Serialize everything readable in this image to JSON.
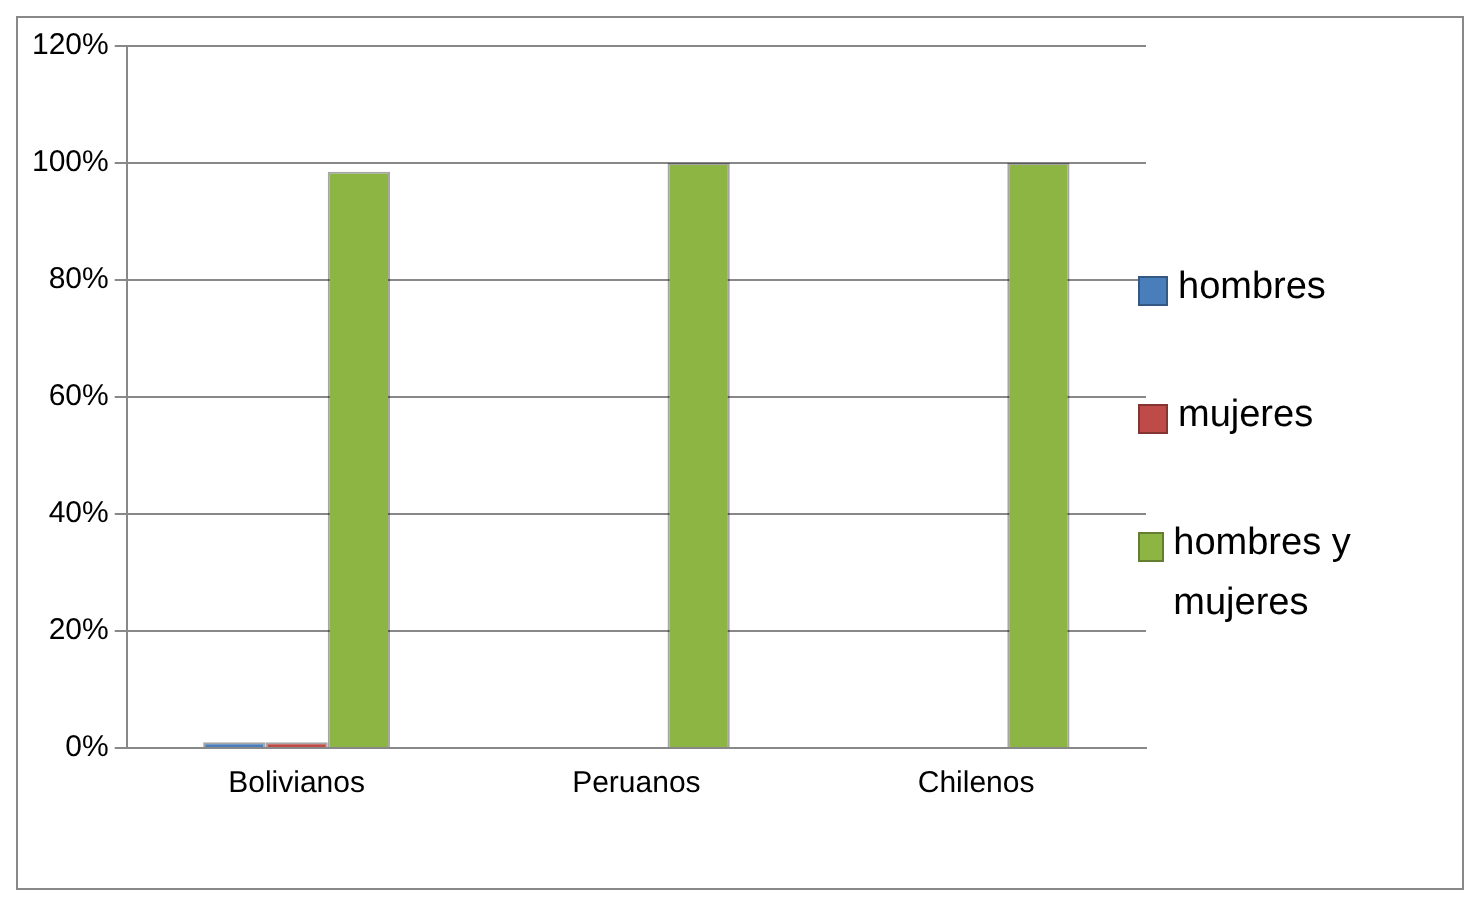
{
  "chart_data": {
    "type": "bar",
    "categories": [
      "Bolivianos",
      "Peruanos",
      "Chilenos"
    ],
    "series": [
      {
        "name": "hombres",
        "color": "#4a7ebb",
        "values": [
          1,
          0,
          0
        ]
      },
      {
        "name": "mujeres",
        "color": "#be4b48",
        "values": [
          1,
          0,
          0
        ]
      },
      {
        "name": "hombres y mujeres",
        "color": "#8db543",
        "values": [
          98.5,
          100,
          100
        ]
      }
    ],
    "ylim": [
      0,
      120
    ],
    "yticks": [
      {
        "value": 0,
        "label": "0%"
      },
      {
        "value": 20,
        "label": "20%"
      },
      {
        "value": 40,
        "label": "40%"
      },
      {
        "value": 60,
        "label": "60%"
      },
      {
        "value": 80,
        "label": "80%"
      },
      {
        "value": 100,
        "label": "100%"
      },
      {
        "value": 120,
        "label": "120%"
      }
    ],
    "grid": "y",
    "legend": "right"
  }
}
